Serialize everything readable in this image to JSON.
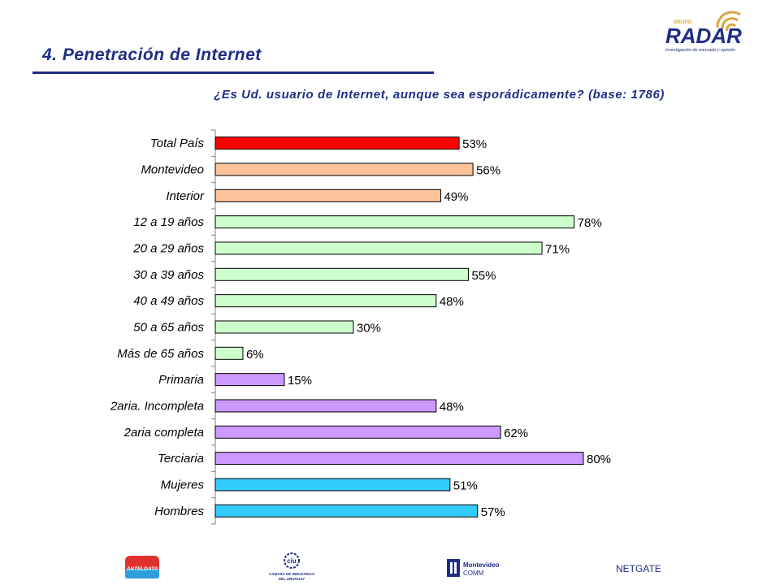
{
  "header": {
    "title": "4. Penetración de Internet",
    "question": "¿Es Ud. usuario de Internet, aunque sea esporádicamente? (base: 1786)"
  },
  "logo": {
    "small_text": "GRUPO",
    "brand": "RADAR",
    "tagline": "investigación de mercado y opinión"
  },
  "chart_data": {
    "type": "bar",
    "orientation": "horizontal",
    "categories": [
      "Total País",
      "Montevideo",
      "Interior",
      "12 a 19 años",
      "20 a 29 años",
      "30 a 39 años",
      "40 a 49 años",
      "50 a 65 años",
      "Más de 65 años",
      "Primaria",
      "2aria. Incompleta",
      "2aria completa",
      "Terciaria",
      "Mujeres",
      "Hombres"
    ],
    "values": [
      53,
      56,
      49,
      78,
      71,
      55,
      48,
      30,
      6,
      15,
      48,
      62,
      80,
      51,
      57
    ],
    "value_labels": [
      "53%",
      "56%",
      "49%",
      "78%",
      "71%",
      "55%",
      "48%",
      "30%",
      "6%",
      "15%",
      "48%",
      "62%",
      "80%",
      "51%",
      "57%"
    ],
    "colors": [
      "#ff0000",
      "#fbc39a",
      "#fbc39a",
      "#ccffcc",
      "#ccffcc",
      "#ccffcc",
      "#ccffcc",
      "#ccffcc",
      "#ccffcc",
      "#cc99ff",
      "#cc99ff",
      "#cc99ff",
      "#cc99ff",
      "#33ccff",
      "#33ccff"
    ],
    "xlim": [
      0,
      80
    ],
    "grid": false
  },
  "footer": {
    "logo1": "ANTELDATA",
    "logo2_line1": "CAMARA DE INDUSTRIAS",
    "logo2_line2": "DEL URUGUAY",
    "logo2_mark": "ciu",
    "logo3_line1": "Montevideo",
    "logo3_line2": "COMM",
    "logo4": "NETGATE"
  },
  "colors": {
    "title": "#1f2d86",
    "accent": "#1f2d86"
  }
}
